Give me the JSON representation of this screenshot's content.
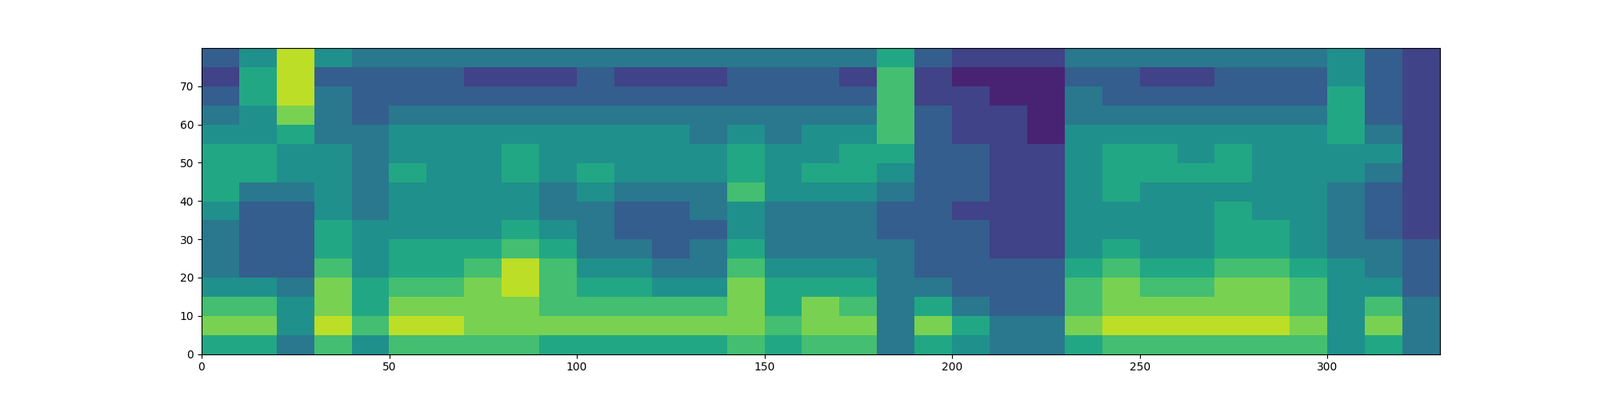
{
  "chart_data": {
    "type": "heatmap",
    "color": "viridis",
    "clim": [
      0,
      10
    ],
    "xlim": [
      0,
      330
    ],
    "ylim": [
      0,
      80
    ],
    "xticks": [
      0,
      50,
      100,
      150,
      200,
      250,
      300
    ],
    "yticks": [
      0,
      10,
      20,
      30,
      40,
      50,
      60,
      70
    ],
    "cells": [
      [
        6,
        8,
        7,
        5,
        4,
        4,
        4,
        5,
        6,
        6,
        6,
        5,
        4,
        3,
        2,
        3
      ],
      [
        6,
        8,
        7,
        5,
        3,
        3,
        3,
        3,
        4,
        6,
        6,
        5,
        5,
        6,
        6,
        5
      ],
      [
        4,
        5,
        5,
        4,
        3,
        3,
        3,
        3,
        4,
        5,
        5,
        6,
        8,
        9,
        9,
        9
      ],
      [
        7,
        9,
        8,
        8,
        7,
        6,
        6,
        5,
        5,
        5,
        5,
        4,
        4,
        4,
        3,
        5
      ],
      [
        5,
        7,
        6,
        6,
        5,
        5,
        5,
        4,
        4,
        4,
        4,
        4,
        3,
        3,
        3,
        4
      ],
      [
        7,
        9,
        8,
        7,
        6,
        6,
        5,
        5,
        5,
        6,
        5,
        5,
        4,
        3,
        3,
        4
      ],
      [
        7,
        9,
        8,
        7,
        6,
        6,
        5,
        5,
        5,
        5,
        5,
        5,
        4,
        3,
        3,
        4
      ],
      [
        7,
        8,
        8,
        8,
        7,
        6,
        5,
        5,
        5,
        5,
        5,
        5,
        4,
        3,
        2,
        4
      ],
      [
        7,
        8,
        8,
        9,
        9,
        7,
        6,
        5,
        5,
        6,
        6,
        5,
        4,
        3,
        2,
        4
      ],
      [
        6,
        8,
        7,
        7,
        7,
        6,
        5,
        4,
        4,
        5,
        5,
        5,
        4,
        3,
        2,
        4
      ],
      [
        6,
        8,
        7,
        6,
        5,
        4,
        4,
        4,
        5,
        6,
        5,
        5,
        4,
        3,
        3,
        4
      ],
      [
        6,
        8,
        7,
        6,
        5,
        4,
        3,
        3,
        4,
        5,
        5,
        5,
        4,
        3,
        2,
        4
      ],
      [
        6,
        8,
        7,
        5,
        4,
        3,
        3,
        3,
        4,
        5,
        5,
        5,
        4,
        3,
        2,
        4
      ],
      [
        6,
        8,
        7,
        5,
        4,
        4,
        3,
        4,
        4,
        5,
        5,
        4,
        4,
        3,
        2,
        4
      ],
      [
        7,
        8,
        8,
        8,
        7,
        6,
        5,
        5,
        7,
        6,
        6,
        5,
        4,
        3,
        3,
        4
      ],
      [
        6,
        7,
        6,
        6,
        5,
        4,
        4,
        4,
        5,
        5,
        5,
        4,
        4,
        3,
        3,
        4
      ],
      [
        7,
        8,
        8,
        6,
        5,
        4,
        4,
        4,
        5,
        6,
        5,
        5,
        4,
        3,
        3,
        4
      ],
      [
        7,
        8,
        7,
        6,
        5,
        4,
        4,
        4,
        5,
        6,
        6,
        5,
        4,
        3,
        2,
        4
      ],
      [
        4,
        4,
        4,
        4,
        4,
        4,
        3,
        3,
        4,
        5,
        6,
        7,
        7,
        7,
        7,
        6
      ],
      [
        6,
        8,
        6,
        4,
        3,
        3,
        3,
        3,
        3,
        3,
        3,
        3,
        3,
        2,
        2,
        3
      ],
      [
        5,
        6,
        4,
        3,
        3,
        3,
        3,
        2,
        3,
        3,
        3,
        2,
        2,
        2,
        1,
        2
      ],
      [
        4,
        4,
        3,
        3,
        3,
        2,
        2,
        2,
        2,
        2,
        2,
        2,
        2,
        1,
        1,
        2
      ],
      [
        4,
        4,
        3,
        3,
        3,
        2,
        2,
        2,
        2,
        2,
        2,
        1,
        1,
        1,
        1,
        2
      ],
      [
        6,
        8,
        7,
        7,
        6,
        5,
        5,
        5,
        5,
        5,
        5,
        5,
        4,
        4,
        3,
        4
      ],
      [
        7,
        9,
        8,
        8,
        7,
        6,
        5,
        5,
        6,
        6,
        6,
        5,
        4,
        3,
        3,
        4
      ],
      [
        7,
        9,
        8,
        7,
        6,
        5,
        5,
        5,
        5,
        6,
        6,
        5,
        4,
        3,
        2,
        4
      ],
      [
        7,
        9,
        8,
        7,
        6,
        5,
        5,
        5,
        5,
        6,
        5,
        5,
        4,
        3,
        2,
        4
      ],
      [
        7,
        9,
        8,
        8,
        7,
        6,
        6,
        6,
        5,
        6,
        6,
        5,
        4,
        3,
        3,
        4
      ],
      [
        7,
        9,
        8,
        8,
        7,
        6,
        6,
        5,
        5,
        5,
        5,
        5,
        4,
        3,
        3,
        4
      ],
      [
        7,
        8,
        7,
        7,
        6,
        5,
        5,
        5,
        5,
        5,
        5,
        5,
        4,
        3,
        3,
        4
      ],
      [
        5,
        5,
        5,
        5,
        5,
        4,
        4,
        4,
        4,
        5,
        5,
        6,
        6,
        6,
        5,
        5
      ],
      [
        6,
        8,
        7,
        5,
        4,
        4,
        3,
        3,
        3,
        4,
        5,
        4,
        3,
        3,
        3,
        3
      ],
      [
        4,
        4,
        4,
        3,
        3,
        3,
        2,
        2,
        2,
        2,
        2,
        2,
        2,
        2,
        2,
        2
      ]
    ]
  }
}
